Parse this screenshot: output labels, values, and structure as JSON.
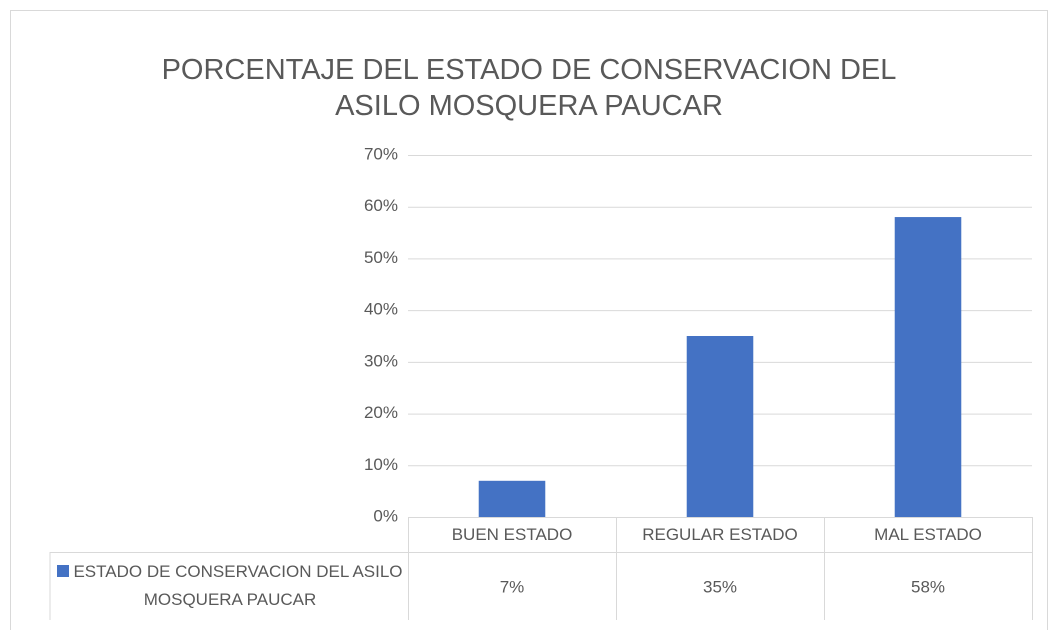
{
  "chart_data": {
    "type": "bar",
    "title": "PORCENTAJE DEL ESTADO DE CONSERVACION DEL ASILO MOSQUERA PAUCAR",
    "categories": [
      "BUEN ESTADO",
      "REGULAR ESTADO",
      "MAL ESTADO"
    ],
    "series": [
      {
        "name": "ESTADO DE CONSERVACION DEL ASILO MOSQUERA PAUCAR",
        "color": "#4472c4",
        "values": [
          7,
          35,
          58
        ],
        "value_labels": [
          "7%",
          "35%",
          "58%"
        ]
      }
    ],
    "ylim": [
      0,
      70
    ],
    "yticks": [
      {
        "value": 0,
        "label": "0%"
      },
      {
        "value": 10,
        "label": "10%"
      },
      {
        "value": 20,
        "label": "20%"
      },
      {
        "value": 30,
        "label": "30%"
      },
      {
        "value": 40,
        "label": "40%"
      },
      {
        "value": 50,
        "label": "50%"
      },
      {
        "value": 60,
        "label": "60%"
      },
      {
        "value": 70,
        "label": "70%"
      }
    ],
    "grid": true,
    "data_table": true
  }
}
